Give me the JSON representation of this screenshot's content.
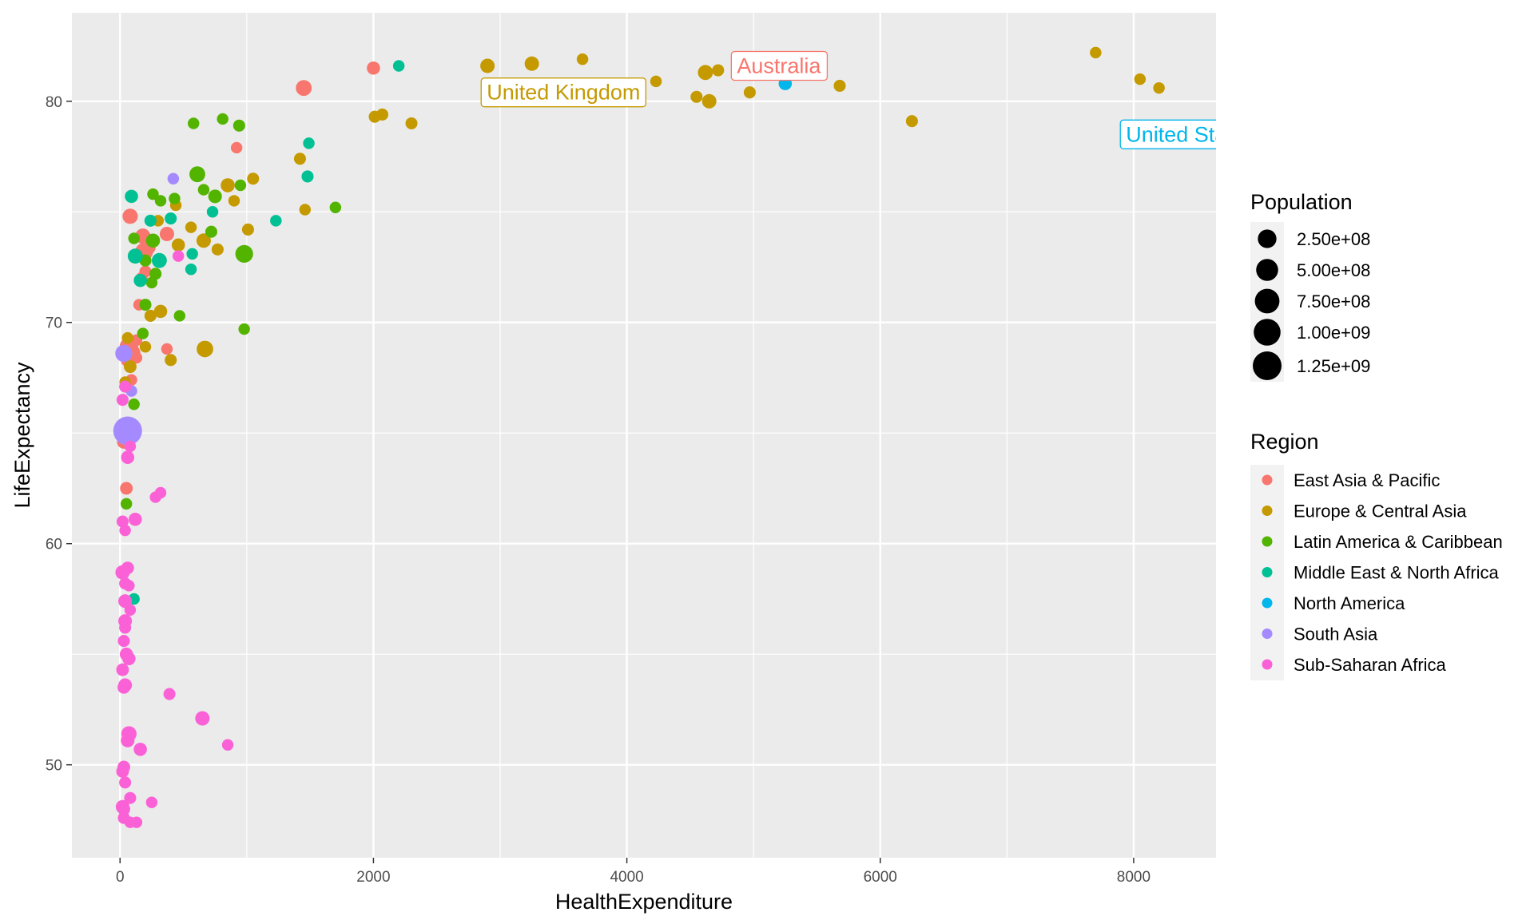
{
  "chart_data": {
    "type": "scatter",
    "xlabel": "HealthExpenditure",
    "ylabel": "LifeExpectancy",
    "xlim": [
      -380,
      8650
    ],
    "ylim": [
      45.8,
      84.0
    ],
    "x_ticks": [
      0,
      2000,
      4000,
      6000,
      8000
    ],
    "x_tick_labels": [
      "0",
      "2000",
      "4000",
      "6000",
      "8000"
    ],
    "y_ticks": [
      50,
      60,
      70,
      80
    ],
    "y_tick_labels": [
      "50",
      "60",
      "70",
      "80"
    ],
    "grid": true,
    "size_legend": {
      "title": "Population",
      "entries": [
        {
          "label": "2.50e+08",
          "value": 250000000
        },
        {
          "label": "5.00e+08",
          "value": 500000000
        },
        {
          "label": "7.50e+08",
          "value": 750000000
        },
        {
          "label": "1.00e+09",
          "value": 1000000000
        },
        {
          "label": "1.25e+09",
          "value": 1250000000
        }
      ]
    },
    "color_legend": {
      "title": "Region",
      "entries": [
        {
          "label": "East Asia & Pacific",
          "color": "#F8766D"
        },
        {
          "label": "Europe & Central Asia",
          "color": "#C49A00"
        },
        {
          "label": "Latin America & Caribbean",
          "color": "#53B400"
        },
        {
          "label": "Middle East & North Africa",
          "color": "#00C094"
        },
        {
          "label": "North America",
          "color": "#00B6EB"
        },
        {
          "label": "South Asia",
          "color": "#A58AFF"
        },
        {
          "label": "Sub-Saharan Africa",
          "color": "#FB61D7"
        }
      ]
    },
    "annotations": [
      {
        "label": "United Kingdom",
        "x": 3500,
        "y": 80.4,
        "region": 1
      },
      {
        "label": "Australia",
        "x": 5200,
        "y": 81.6,
        "region": 0
      },
      {
        "label": "United States",
        "x": 8450,
        "y": 78.5,
        "region": 4
      }
    ],
    "points": [
      [
        2000,
        81.5,
        0,
        30000000
      ],
      [
        1450,
        80.6,
        0,
        110000000
      ],
      [
        920,
        77.9,
        0,
        5000000
      ],
      [
        80,
        74.8,
        0,
        90000000
      ],
      [
        180,
        73.9,
        0,
        90000000
      ],
      [
        230,
        73.6,
        0,
        90000000
      ],
      [
        190,
        73.2,
        0,
        200000000
      ],
      [
        220,
        73.4,
        0,
        90000000
      ],
      [
        370,
        74.0,
        0,
        60000000
      ],
      [
        200,
        72.3,
        0,
        10000000
      ],
      [
        170,
        72.0,
        0,
        10000000
      ],
      [
        150,
        70.8,
        0,
        5000000
      ],
      [
        70,
        68.9,
        0,
        250000000
      ],
      [
        90,
        68.6,
        0,
        220000000
      ],
      [
        60,
        68.3,
        0,
        40000000
      ],
      [
        130,
        69.2,
        0,
        5000000
      ],
      [
        90,
        67.4,
        0,
        5000000
      ],
      [
        370,
        68.8,
        0,
        5000000
      ],
      [
        130,
        68.4,
        0,
        5000000
      ],
      [
        30,
        64.6,
        0,
        40000000
      ],
      [
        50,
        62.5,
        0,
        20000000
      ],
      [
        2900,
        81.6,
        1,
        60000000
      ],
      [
        3250,
        81.7,
        1,
        60000000
      ],
      [
        3650,
        81.9,
        1,
        5000000
      ],
      [
        4230,
        80.9,
        1,
        5000000
      ],
      [
        4620,
        81.3,
        1,
        80000000
      ],
      [
        4720,
        81.4,
        1,
        10000000
      ],
      [
        4550,
        80.2,
        1,
        10000000
      ],
      [
        4650,
        80.0,
        1,
        60000000
      ],
      [
        4970,
        80.4,
        1,
        10000000
      ],
      [
        5680,
        80.7,
        1,
        10000000
      ],
      [
        6250,
        79.1,
        1,
        10000000
      ],
      [
        7700,
        82.2,
        1,
        5000000
      ],
      [
        8050,
        81.0,
        1,
        5000000
      ],
      [
        8200,
        80.6,
        1,
        5000000
      ],
      [
        2010,
        79.3,
        1,
        10000000
      ],
      [
        2070,
        79.4,
        1,
        10000000
      ],
      [
        2300,
        79.0,
        1,
        10000000
      ],
      [
        1420,
        77.4,
        1,
        10000000
      ],
      [
        1050,
        76.5,
        1,
        10000000
      ],
      [
        850,
        76.2,
        1,
        50000000
      ],
      [
        900,
        75.5,
        1,
        5000000
      ],
      [
        1460,
        75.1,
        1,
        5000000
      ],
      [
        440,
        75.3,
        1,
        5000000
      ],
      [
        300,
        74.6,
        1,
        5000000
      ],
      [
        1010,
        74.2,
        1,
        10000000
      ],
      [
        660,
        73.7,
        1,
        60000000
      ],
      [
        460,
        73.5,
        1,
        30000000
      ],
      [
        770,
        73.3,
        1,
        10000000
      ],
      [
        560,
        74.3,
        1,
        5000000
      ],
      [
        320,
        70.5,
        1,
        30000000
      ],
      [
        240,
        70.3,
        1,
        10000000
      ],
      [
        670,
        68.8,
        1,
        140000000
      ],
      [
        400,
        68.3,
        1,
        10000000
      ],
      [
        200,
        68.9,
        1,
        5000000
      ],
      [
        60,
        69.3,
        1,
        5000000
      ],
      [
        40,
        67.3,
        1,
        5000000
      ],
      [
        80,
        68.0,
        1,
        20000000
      ],
      [
        580,
        79.0,
        2,
        5000000
      ],
      [
        810,
        79.2,
        2,
        5000000
      ],
      [
        940,
        78.9,
        2,
        10000000
      ],
      [
        610,
        76.7,
        2,
        110000000
      ],
      [
        1700,
        75.2,
        2,
        5000000
      ],
      [
        750,
        75.7,
        2,
        40000000
      ],
      [
        950,
        76.2,
        2,
        5000000
      ],
      [
        660,
        76.0,
        2,
        5000000
      ],
      [
        320,
        75.5,
        2,
        5000000
      ],
      [
        430,
        75.6,
        2,
        5000000
      ],
      [
        260,
        75.8,
        2,
        5000000
      ],
      [
        980,
        73.1,
        2,
        200000000
      ],
      [
        720,
        74.1,
        2,
        10000000
      ],
      [
        260,
        73.7,
        2,
        50000000
      ],
      [
        110,
        73.8,
        2,
        5000000
      ],
      [
        200,
        72.8,
        2,
        10000000
      ],
      [
        280,
        72.2,
        2,
        10000000
      ],
      [
        250,
        71.8,
        2,
        5000000
      ],
      [
        200,
        70.8,
        2,
        10000000
      ],
      [
        470,
        70.3,
        2,
        5000000
      ],
      [
        980,
        69.7,
        2,
        5000000
      ],
      [
        180,
        69.5,
        2,
        5000000
      ],
      [
        110,
        66.3,
        2,
        5000000
      ],
      [
        50,
        61.8,
        2,
        5000000
      ],
      [
        2200,
        81.6,
        3,
        5000000
      ],
      [
        1490,
        78.1,
        3,
        5000000
      ],
      [
        1480,
        76.6,
        3,
        10000000
      ],
      [
        1230,
        74.6,
        3,
        5000000
      ],
      [
        90,
        75.7,
        3,
        30000000
      ],
      [
        240,
        74.6,
        3,
        10000000
      ],
      [
        400,
        74.7,
        3,
        10000000
      ],
      [
        730,
        75.0,
        3,
        5000000
      ],
      [
        120,
        73.0,
        3,
        80000000
      ],
      [
        310,
        72.8,
        3,
        80000000
      ],
      [
        560,
        72.4,
        3,
        5000000
      ],
      [
        160,
        71.9,
        3,
        30000000
      ],
      [
        570,
        73.1,
        3,
        5000000
      ],
      [
        90,
        65.0,
        3,
        30000000
      ],
      [
        110,
        57.5,
        3,
        5000000
      ],
      [
        5250,
        80.8,
        4,
        30000000
      ],
      [
        30,
        68.6,
        5,
        170000000
      ],
      [
        60,
        65.1,
        5,
        1250000000
      ],
      [
        420,
        76.5,
        5,
        5000000
      ],
      [
        90,
        66.9,
        5,
        5000000
      ],
      [
        460,
        73.0,
        6,
        5000000
      ],
      [
        40,
        67.1,
        6,
        10000000
      ],
      [
        20,
        66.5,
        6,
        10000000
      ],
      [
        80,
        64.4,
        6,
        5000000
      ],
      [
        60,
        63.9,
        6,
        30000000
      ],
      [
        320,
        62.3,
        6,
        5000000
      ],
      [
        280,
        62.1,
        6,
        5000000
      ],
      [
        120,
        61.1,
        6,
        30000000
      ],
      [
        20,
        61.0,
        6,
        10000000
      ],
      [
        40,
        60.6,
        6,
        5000000
      ],
      [
        20,
        58.7,
        6,
        60000000
      ],
      [
        60,
        58.9,
        6,
        20000000
      ],
      [
        40,
        58.2,
        6,
        10000000
      ],
      [
        70,
        58.1,
        6,
        5000000
      ],
      [
        40,
        57.4,
        6,
        40000000
      ],
      [
        80,
        57.0,
        6,
        5000000
      ],
      [
        40,
        56.5,
        6,
        40000000
      ],
      [
        40,
        56.2,
        6,
        10000000
      ],
      [
        30,
        55.6,
        6,
        10000000
      ],
      [
        50,
        55.0,
        6,
        30000000
      ],
      [
        70,
        54.8,
        6,
        30000000
      ],
      [
        20,
        54.3,
        6,
        20000000
      ],
      [
        40,
        53.6,
        6,
        40000000
      ],
      [
        30,
        53.5,
        6,
        20000000
      ],
      [
        390,
        53.2,
        6,
        10000000
      ],
      [
        650,
        52.1,
        6,
        60000000
      ],
      [
        850,
        50.9,
        6,
        5000000
      ],
      [
        70,
        51.4,
        6,
        90000000
      ],
      [
        60,
        51.1,
        6,
        40000000
      ],
      [
        160,
        50.7,
        6,
        30000000
      ],
      [
        30,
        49.9,
        6,
        20000000
      ],
      [
        20,
        49.7,
        6,
        20000000
      ],
      [
        40,
        49.2,
        6,
        10000000
      ],
      [
        80,
        48.5,
        6,
        10000000
      ],
      [
        20,
        48.1,
        6,
        40000000
      ],
      [
        30,
        48.0,
        6,
        20000000
      ],
      [
        250,
        48.3,
        6,
        5000000
      ],
      [
        30,
        47.6,
        6,
        10000000
      ],
      [
        80,
        47.4,
        6,
        5000000
      ],
      [
        130,
        47.4,
        6,
        5000000
      ]
    ]
  }
}
